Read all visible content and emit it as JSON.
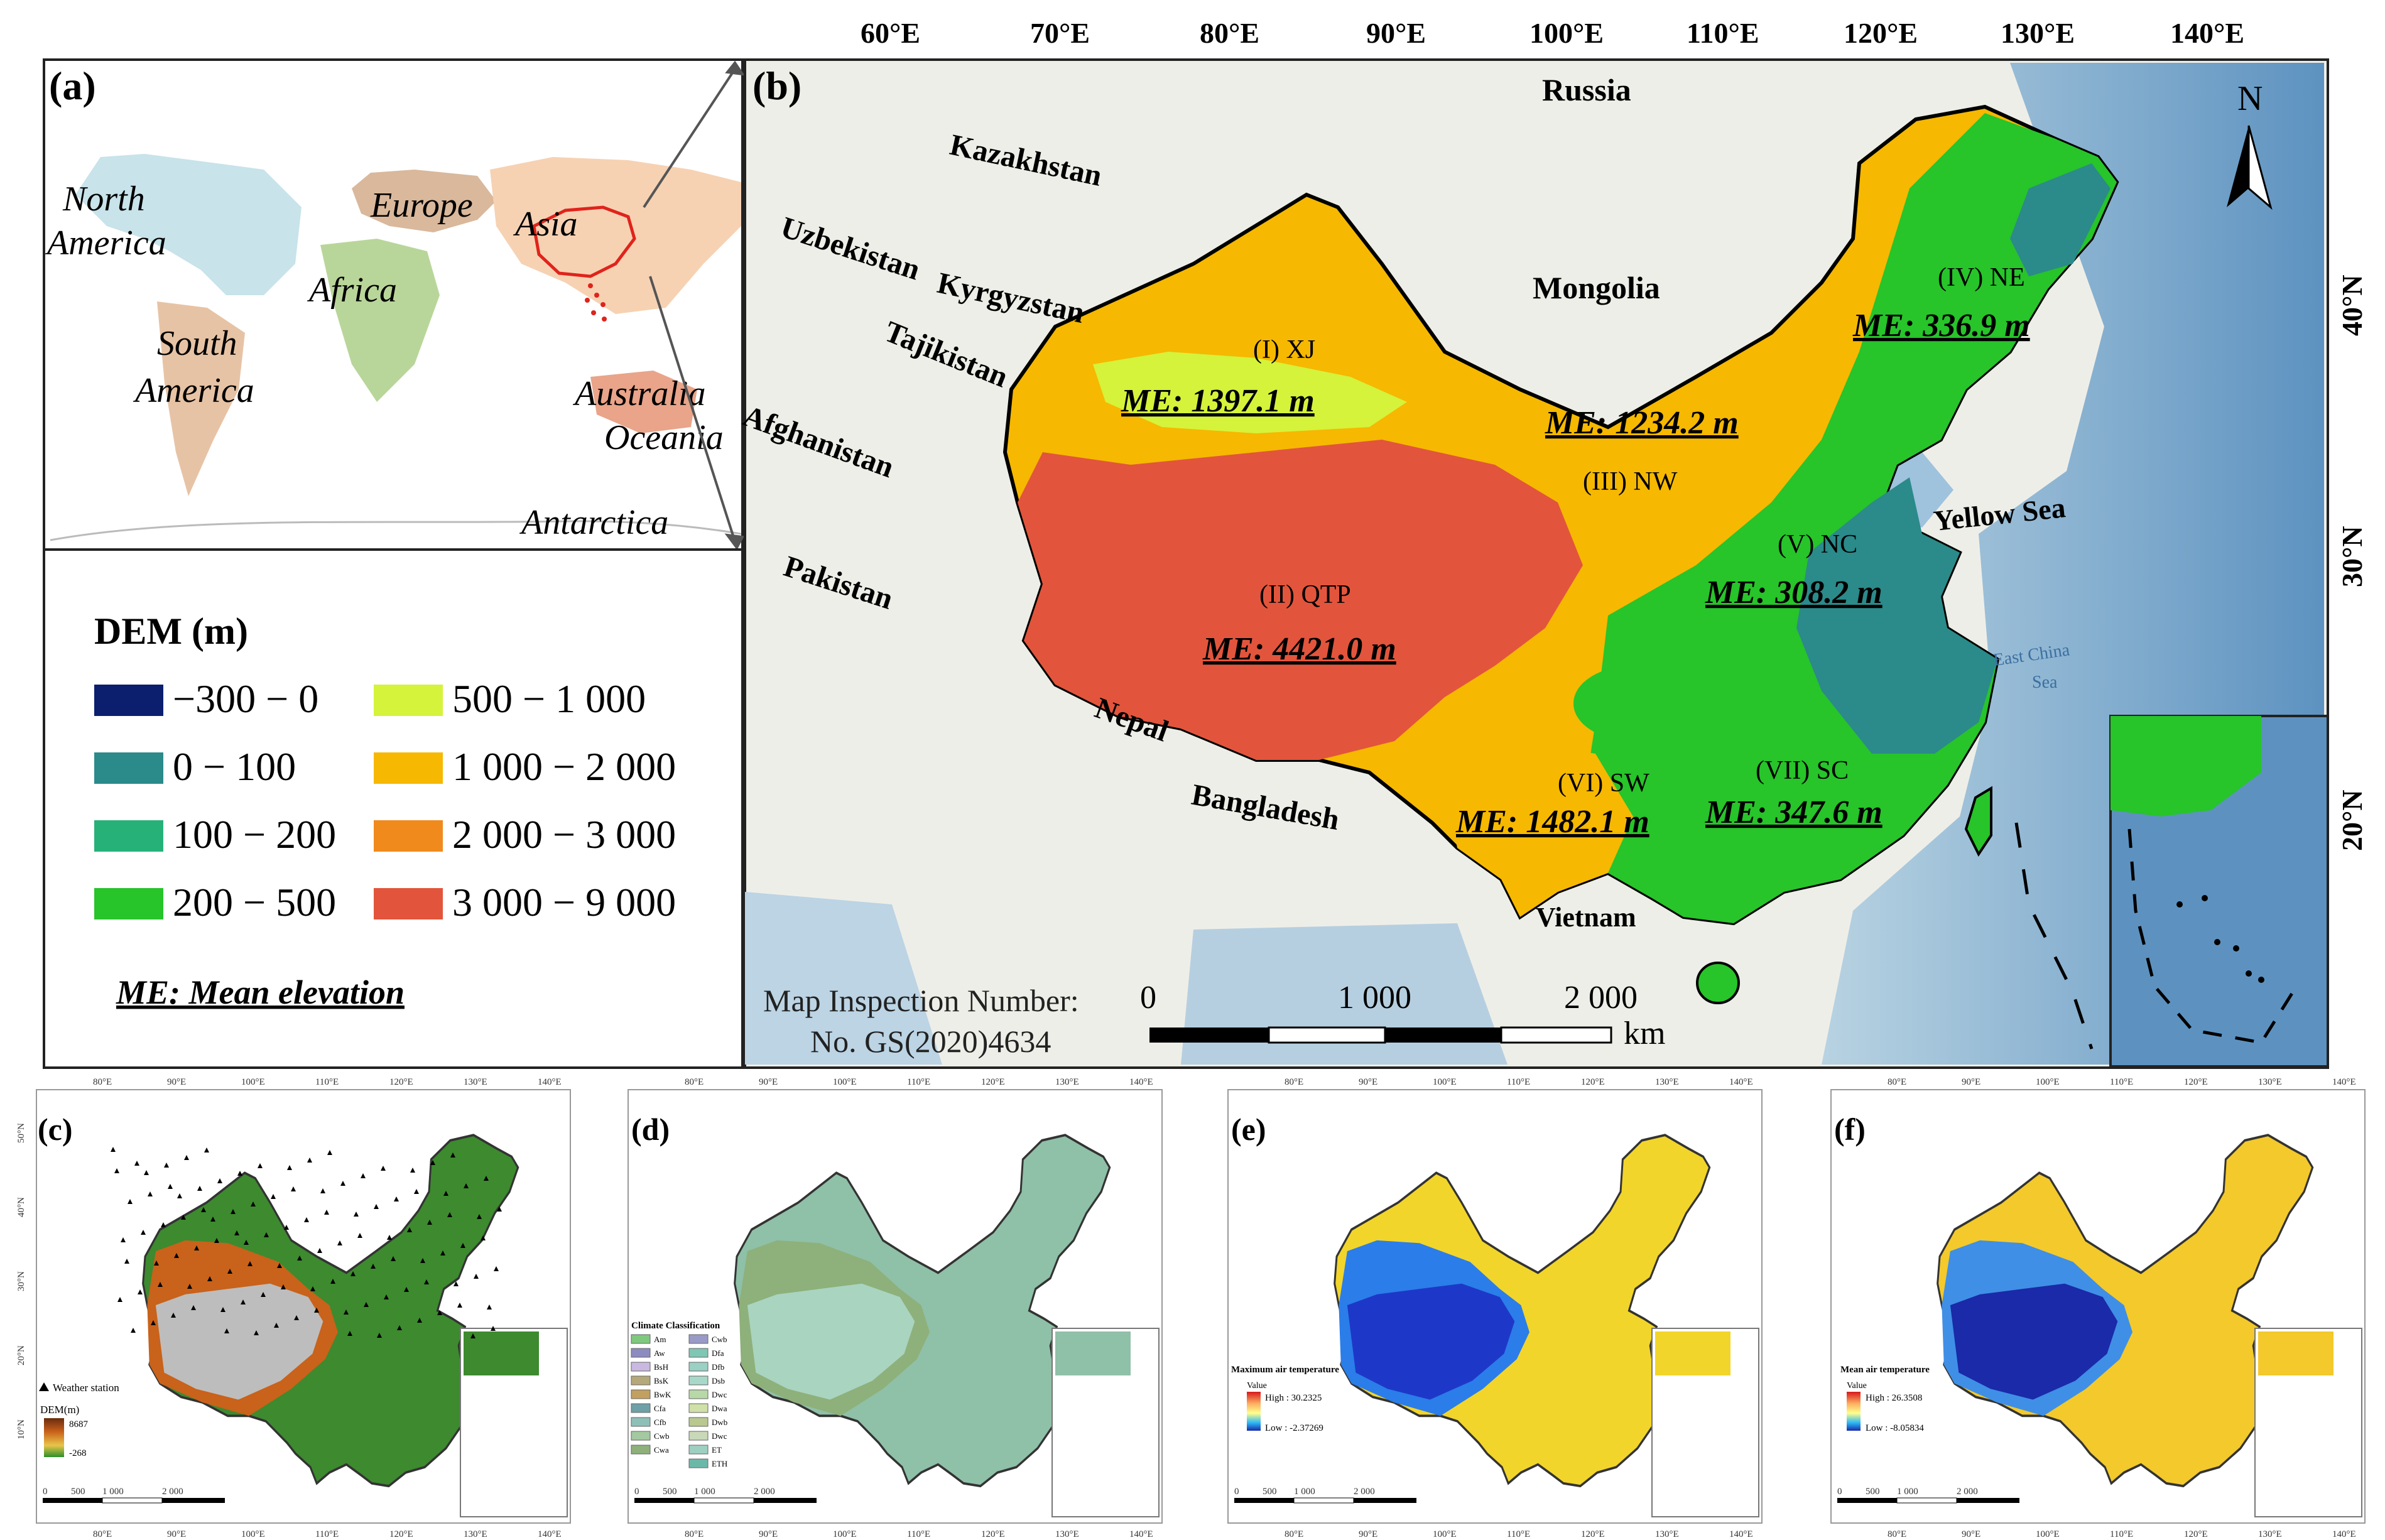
{
  "panel_a": {
    "label": "(a)",
    "continents": {
      "north_america_1": "North",
      "north_america_2": "America",
      "europe": "Europe",
      "asia": "Asia",
      "africa": "Africa",
      "south_america_1": "South",
      "south_america_2": "America",
      "australia": "Australia",
      "oceania": "Oceania",
      "antarctica": "Antarctica"
    },
    "colors": {
      "ocean": "#ffffff",
      "north_america": "#c8e3ea",
      "europe": "#d9b89c",
      "asia": "#f6d2b3",
      "africa": "#b9d69a",
      "south_america": "#e7c3a5",
      "oceania": "#e9a489",
      "china": "#e0231b"
    }
  },
  "legend": {
    "title": "DEM (m)",
    "items": [
      {
        "label": "−300 − 0",
        "color": "#0b1f6e"
      },
      {
        "label": "0 − 100",
        "color": "#2b8a8a"
      },
      {
        "label": "100 − 200",
        "color": "#26b179"
      },
      {
        "label": "200 − 500",
        "color": "#27c42a"
      },
      {
        "label": "500 − 1 000",
        "color": "#d4f33a"
      },
      {
        "label": "1 000 − 2 000",
        "color": "#f6b800"
      },
      {
        "label": "2 000 − 3 000",
        "color": "#f08a1d"
      },
      {
        "label": "3 000 − 9 000",
        "color": "#e2553c"
      }
    ],
    "note": "ME: Mean elevation"
  },
  "panel_b": {
    "label": "(b)",
    "north": "N",
    "lon_ticks": [
      "60°E",
      "70°E",
      "80°E",
      "90°E",
      "100°E",
      "110°E",
      "120°E",
      "130°E",
      "140°E"
    ],
    "lat_ticks": [
      "40°N",
      "30°N",
      "20°N"
    ],
    "countries": {
      "russia": "Russia",
      "kazakhstan": "Kazakhstan",
      "uzbekistan": "Uzbekistan",
      "kyrgyzstan": "Kyrgyzstan",
      "tajikistan": "Tajikistan",
      "afghanistan": "Afghanistan",
      "pakistan": "Pakistan",
      "mongolia": "Mongolia",
      "nepal": "Nepal",
      "bangladesh": "Bangladesh",
      "vietnam": "Vietnam",
      "yellow_sea": "Yellow Sea",
      "east_china_sea_1": "East China",
      "east_china_sea_2": "Sea"
    },
    "regions": [
      {
        "name": "(I) XJ",
        "me": "ME: 1397.1 m"
      },
      {
        "name": "(II) QTP",
        "me": "ME: 4421.0 m"
      },
      {
        "name": "(III) NW",
        "me": "ME: 1234.2 m"
      },
      {
        "name": "(IV) NE",
        "me": "ME: 336.9 m"
      },
      {
        "name": "(V) NC",
        "me": "ME: 308.2 m"
      },
      {
        "name": "(VI) SW",
        "me": "ME: 1482.1 m"
      },
      {
        "name": "(VII) SC",
        "me": "ME: 347.6 m"
      }
    ],
    "inspection_1": "Map Inspection Number:",
    "inspection_2": "No. GS(2020)4634",
    "scale": {
      "t0": "0",
      "t1": "1 000",
      "t2": "2 000",
      "unit": "km"
    }
  },
  "panel_c": {
    "label": "(c)",
    "station": "Weather station",
    "dem_title": "DEM(m)",
    "dem_high": "8687",
    "dem_low": "-268",
    "lon_ticks": [
      "80°E",
      "90°E",
      "100°E",
      "110°E",
      "120°E",
      "130°E",
      "140°E"
    ],
    "lat_ticks": [
      "50°N",
      "40°N",
      "30°N",
      "20°N",
      "10°N"
    ],
    "scale": [
      "0",
      "500",
      "1 000",
      "2 000"
    ]
  },
  "panel_d": {
    "label": "(d)",
    "legend_title": "Climate Classification",
    "classes": [
      {
        "label": "Am",
        "color": "#7fc97f"
      },
      {
        "label": "Aw",
        "color": "#8c8cbf"
      },
      {
        "label": "BsH",
        "color": "#c9b8e0"
      },
      {
        "label": "BsK",
        "color": "#b5a87a"
      },
      {
        "label": "BwK",
        "color": "#c2a060"
      },
      {
        "label": "Cfa",
        "color": "#6fa0a8"
      },
      {
        "label": "Cfb",
        "color": "#8fc0b8"
      },
      {
        "label": "Cwb",
        "color": "#a4c8a0"
      },
      {
        "label": "Cwa",
        "color": "#8eb07a"
      },
      {
        "label": "Cwb",
        "color": "#9a9ac8"
      },
      {
        "label": "Dfa",
        "color": "#7fc6b4"
      },
      {
        "label": "Dfb",
        "color": "#9bd0c4"
      },
      {
        "label": "Dsb",
        "color": "#a8d8c8"
      },
      {
        "label": "Dwc",
        "color": "#b8d8a8"
      },
      {
        "label": "Dwa",
        "color": "#cfe0a8"
      },
      {
        "label": "Dwb",
        "color": "#b8c890"
      },
      {
        "label": "Dwc",
        "color": "#c8d8b8"
      },
      {
        "label": "ET",
        "color": "#9ecfc0"
      },
      {
        "label": "ETH",
        "color": "#6cb8a8"
      }
    ],
    "lon_ticks": [
      "80°E",
      "90°E",
      "100°E",
      "110°E",
      "120°E",
      "130°E",
      "140°E"
    ],
    "scale": [
      "0",
      "500",
      "1 000",
      "2 000"
    ]
  },
  "panel_e": {
    "label": "(e)",
    "legend_title": "Maximum air temperature",
    "value": "Value",
    "high": "High : 30.2325",
    "low": "Low : -2.37269",
    "lon_ticks": [
      "80°E",
      "90°E",
      "100°E",
      "110°E",
      "120°E",
      "130°E",
      "140°E"
    ],
    "scale": [
      "0",
      "500",
      "1 000",
      "2 000"
    ]
  },
  "panel_f": {
    "label": "(f)",
    "legend_title": "Mean air temperature",
    "value": "Value",
    "high": "High : 26.3508",
    "low": "Low : -8.05834",
    "lon_ticks": [
      "80°E",
      "90°E",
      "100°E",
      "110°E",
      "120°E",
      "130°E",
      "140°E"
    ],
    "scale": [
      "0",
      "500",
      "1 000",
      "2 000"
    ]
  }
}
